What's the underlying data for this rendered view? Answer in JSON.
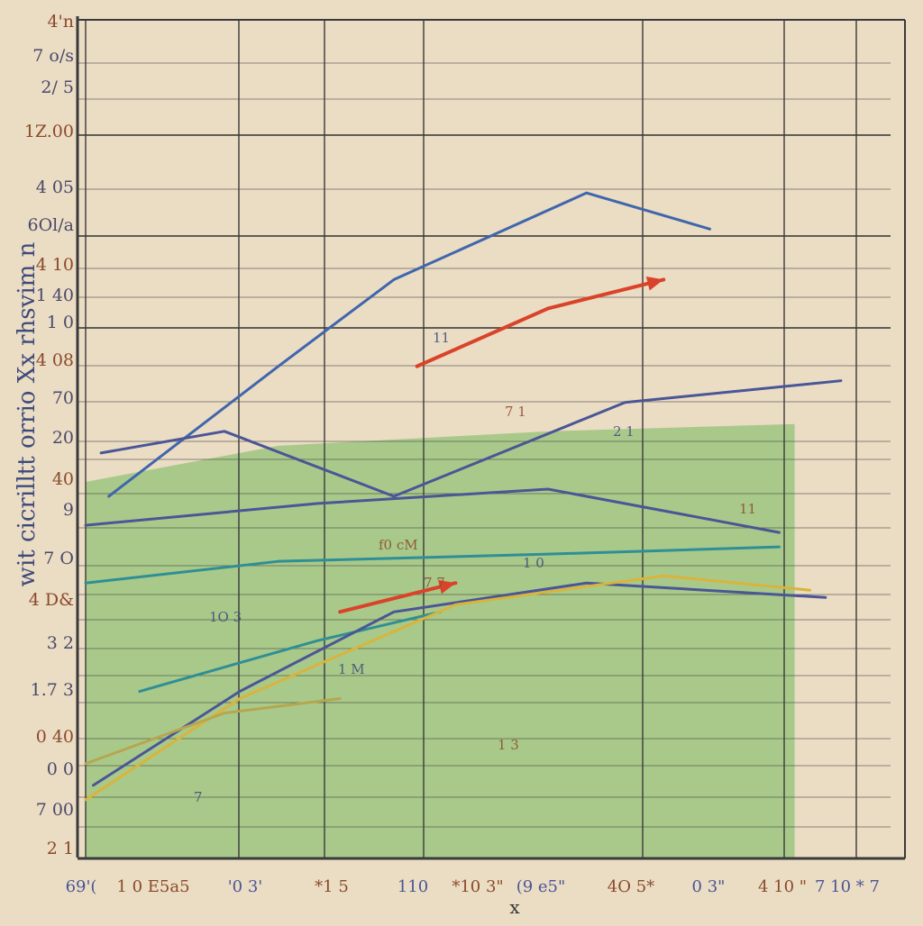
{
  "chart_data": {
    "type": "area",
    "title": "",
    "xlabel": "x",
    "ylabel": "wit cicrilltt orrio Xx rhsvim n",
    "colors": {
      "background": "#ebdcc4",
      "area_fill": "#a9c98a",
      "blue": "#3f66ad",
      "navy": "#4a5696",
      "teal": "#2f8f95",
      "red": "#d9432a",
      "gold": "#d9b43c",
      "olive": "#b6a64e",
      "grid": "#3a3a3a"
    },
    "y_ticks": [
      "4'n",
      "7 o/s",
      "2/ 5",
      "1Z.00",
      "4 05",
      "6Ol/a",
      "4 10",
      "1 40",
      "1 0",
      "4 08",
      "70",
      "20",
      "40",
      "9",
      "7 O",
      "4 D&",
      "3 2",
      "1.7 3",
      "0 40",
      "0 0",
      "7 00",
      "2 1"
    ],
    "x_ticks": [
      "69'(",
      "1 0 E5a5",
      "'0 3'",
      "*1 5",
      "110",
      "*10 3\"",
      "(9 e5\"",
      "4O 5*",
      "0 3\"",
      "4 10 \"",
      "7 10 * 7"
    ],
    "annotations": [
      "1O 3",
      "f0 cM",
      "11",
      "7 1",
      "2 1",
      "7 7",
      "1 0",
      "11",
      "1 M",
      "1 3",
      "7"
    ],
    "xlim": [
      0,
      10
    ],
    "ylim": [
      0,
      10
    ],
    "series": [
      {
        "color_key": "blue",
        "x": [
          0.3,
          2.5,
          4.0,
          6.5,
          8.1
        ],
        "y": [
          5.0,
          6.8,
          8.0,
          9.2,
          8.7
        ]
      },
      {
        "color_key": "navy",
        "x": [
          0.2,
          1.8,
          4.0,
          7.0,
          9.8
        ],
        "y": [
          5.6,
          5.9,
          5.0,
          6.3,
          6.6
        ]
      },
      {
        "color_key": "navy",
        "x": [
          0.0,
          3.0,
          6.0,
          9.0
        ],
        "y": [
          4.6,
          4.9,
          5.1,
          4.5
        ]
      },
      {
        "color_key": "teal",
        "x": [
          0.0,
          2.5,
          6.0,
          9.0
        ],
        "y": [
          3.8,
          4.1,
          4.2,
          4.3
        ]
      },
      {
        "color_key": "teal",
        "x": [
          0.7,
          3.0,
          4.6
        ],
        "y": [
          2.3,
          3.0,
          3.4
        ]
      },
      {
        "color_key": "navy",
        "x": [
          0.1,
          2.0,
          4.0,
          6.5,
          9.6
        ],
        "y": [
          1.0,
          2.3,
          3.4,
          3.8,
          3.6
        ]
      },
      {
        "color_key": "gold",
        "x": [
          0.0,
          2.0,
          4.8,
          7.5,
          9.4
        ],
        "y": [
          0.8,
          2.2,
          3.5,
          3.9,
          3.7
        ]
      },
      {
        "color_key": "olive",
        "x": [
          0.0,
          1.8,
          3.3
        ],
        "y": [
          1.3,
          2.0,
          2.2
        ]
      },
      {
        "color_key": "red",
        "x": [
          4.3,
          6.0,
          7.5
        ],
        "y": [
          6.8,
          7.6,
          8.0
        ]
      },
      {
        "color_key": "red",
        "x": [
          3.3,
          4.8
        ],
        "y": [
          3.4,
          3.8
        ]
      }
    ],
    "area": {
      "x": [
        0,
        2.5,
        6,
        9.2
      ],
      "y": [
        5.2,
        5.7,
        5.9,
        6.0
      ]
    },
    "grid": true,
    "legend": "none"
  }
}
